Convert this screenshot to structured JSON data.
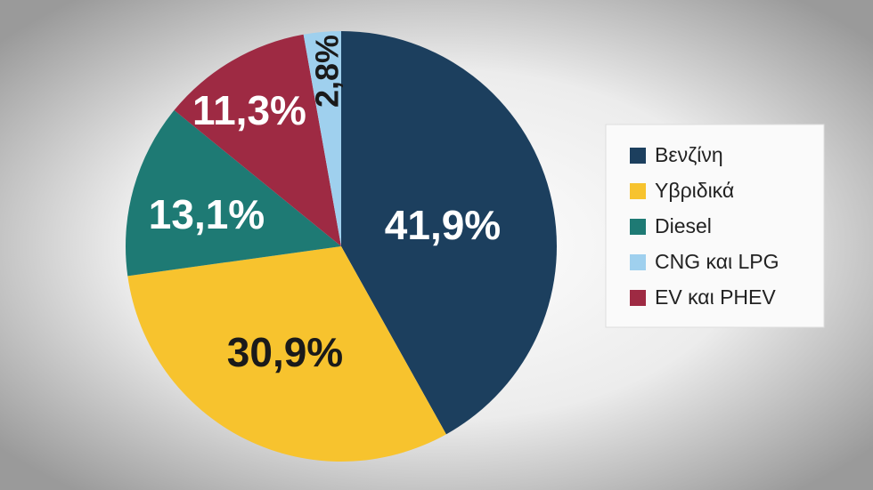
{
  "chart_data": {
    "type": "pie",
    "categories": [
      "Βενζίνη",
      "Υβριδικά",
      "Diesel",
      "CNG και LPG",
      "EV και PHEV"
    ],
    "values": [
      41.9,
      30.9,
      13.1,
      2.8,
      11.3
    ],
    "value_labels": [
      "41,9%",
      "30,9%",
      "13,1%",
      "2,8%",
      "11,3%"
    ],
    "colors": [
      "#1c3f5e",
      "#f7c32e",
      "#1e7a74",
      "#9fd0ee",
      "#9e2a43"
    ],
    "legend": "right"
  }
}
